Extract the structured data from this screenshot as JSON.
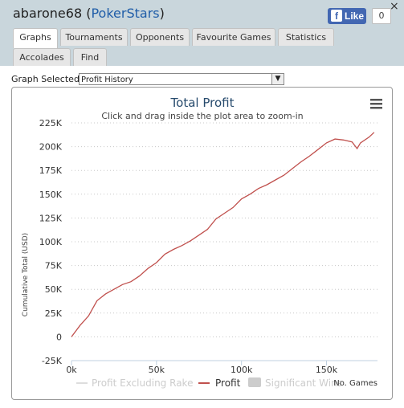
{
  "header": {
    "username": "abarone68",
    "network_open": "(",
    "network": "PokerStars",
    "network_close": ")",
    "close_glyph": "×",
    "like_label": "Like",
    "like_count": "0",
    "fb_glyph": "f"
  },
  "tabs": [
    {
      "label": "Graphs",
      "active": true
    },
    {
      "label": "Tournaments",
      "active": false
    },
    {
      "label": "Opponents",
      "active": false
    },
    {
      "label": "Favourite Games",
      "active": false
    },
    {
      "label": "Statistics",
      "active": false
    },
    {
      "label": "Accolades",
      "active": false
    },
    {
      "label": "Find",
      "active": false
    }
  ],
  "graph_select": {
    "label": "Graph Selected:",
    "value": "Profit History"
  },
  "chart": {
    "menu_icon": "hamburger-menu-icon"
  },
  "chart_data": {
    "type": "line",
    "title": "Total Profit",
    "subtitle": "Click and drag inside the plot area to zoom-in",
    "xlabel": "No. Games",
    "ylabel": "Cumulative Total (USD)",
    "xlim": [
      0,
      180000
    ],
    "ylim": [
      -25000,
      225000
    ],
    "x_ticks": [
      "0k",
      "50k",
      "100k",
      "150k"
    ],
    "y_ticks": [
      "225K",
      "200K",
      "175K",
      "150K",
      "125K",
      "100K",
      "75K",
      "50K",
      "25K",
      "0",
      "-25K"
    ],
    "grid": "horizontal dotted",
    "legend_position": "bottom",
    "series": [
      {
        "name": "Profit Excluding Rake",
        "color": "#dddddd",
        "x": [],
        "y": []
      },
      {
        "name": "Profit",
        "color": "#c0504d",
        "x": [
          0,
          5000,
          10000,
          15000,
          20000,
          25000,
          30000,
          35000,
          40000,
          45000,
          50000,
          55000,
          60000,
          65000,
          70000,
          75000,
          80000,
          85000,
          90000,
          95000,
          100000,
          105000,
          110000,
          115000,
          120000,
          125000,
          130000,
          135000,
          140000,
          145000,
          150000,
          155000,
          160000,
          165000,
          168000,
          170000,
          175000,
          178000
        ],
        "y": [
          0,
          12000,
          22000,
          38000,
          45000,
          50000,
          55000,
          58000,
          64000,
          72000,
          78000,
          87000,
          92000,
          96000,
          101000,
          107000,
          113000,
          124000,
          130000,
          136000,
          145000,
          150000,
          156000,
          160000,
          165000,
          170000,
          177000,
          184000,
          190000,
          197000,
          204000,
          208000,
          207000,
          205000,
          198000,
          204000,
          210000,
          215000
        ]
      },
      {
        "name": "Significant Wins",
        "color": "#cccccc",
        "x": [],
        "y": []
      }
    ]
  }
}
